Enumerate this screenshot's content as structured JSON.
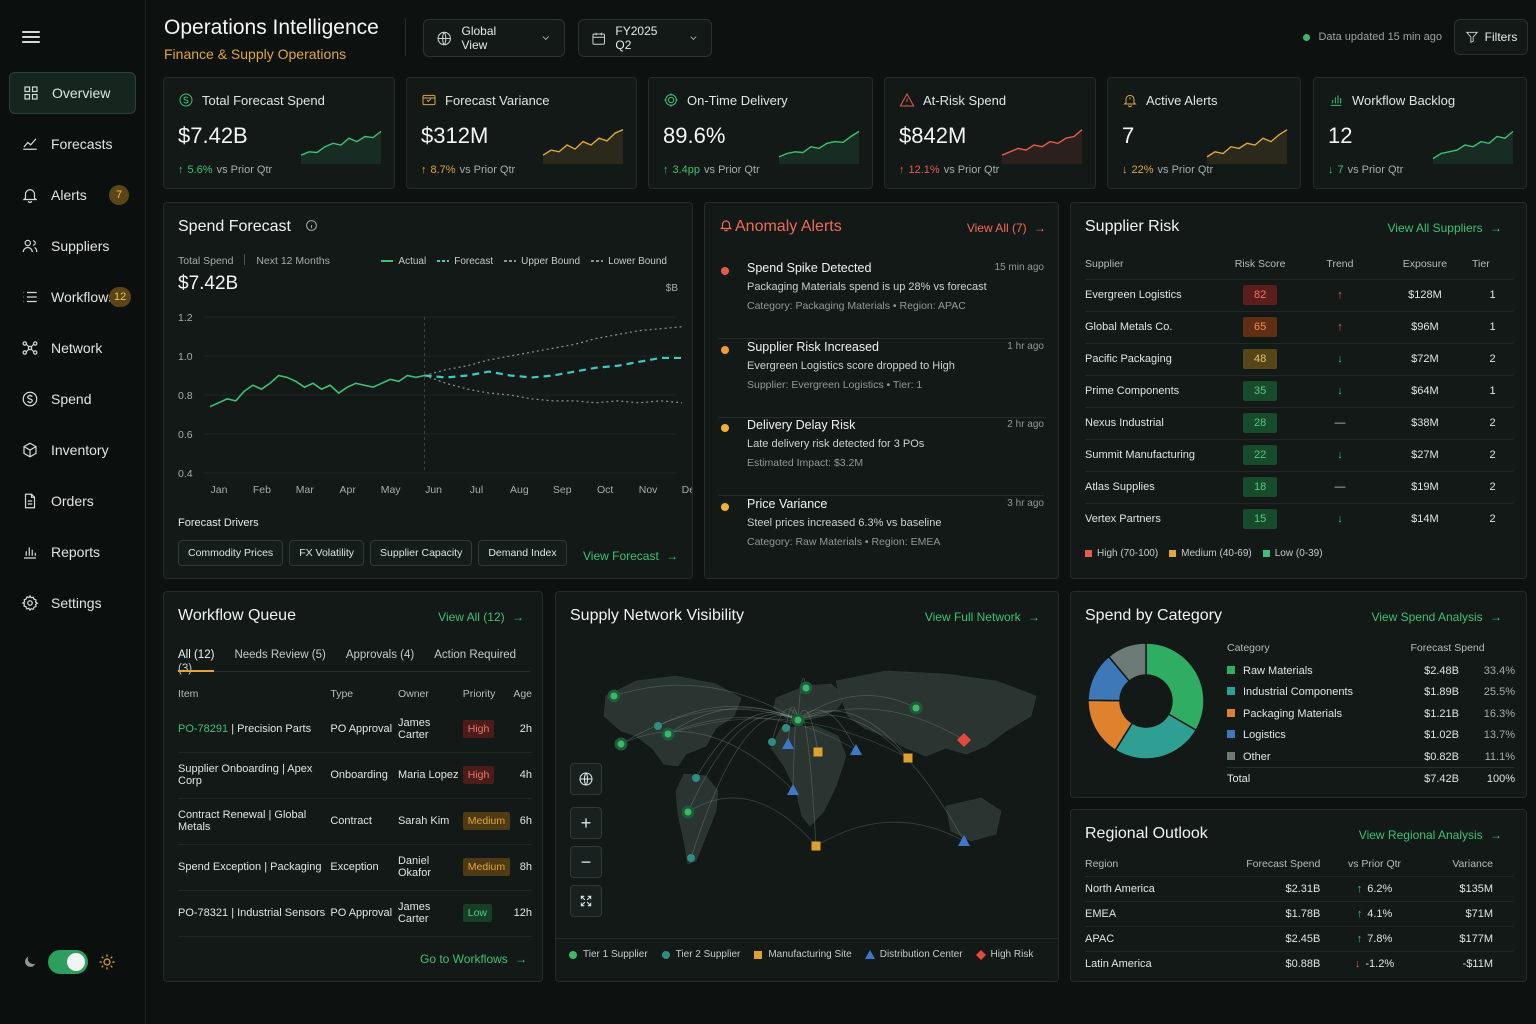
{
  "app": {
    "title": "Operations Intelligence",
    "subtitle": "Finance & Supply Operations",
    "scope": "Global View",
    "period": "FY2025 Q2",
    "updated": "Data updated 15 min ago",
    "filters": "Filters"
  },
  "nav": [
    {
      "label": "Overview",
      "icon": "grid-icon"
    },
    {
      "label": "Forecasts",
      "icon": "trend-icon"
    },
    {
      "label": "Alerts",
      "icon": "bell-icon",
      "badge": "7"
    },
    {
      "label": "Suppliers",
      "icon": "users-icon"
    },
    {
      "label": "Workflows",
      "icon": "list-icon",
      "badge": "12"
    },
    {
      "label": "Network",
      "icon": "network-icon"
    },
    {
      "label": "Spend",
      "icon": "dollar-icon"
    },
    {
      "label": "Inventory",
      "icon": "cube-icon"
    },
    {
      "label": "Orders",
      "icon": "document-icon"
    },
    {
      "label": "Reports",
      "icon": "bar-chart-icon"
    },
    {
      "label": "Settings",
      "icon": "gear-icon"
    }
  ],
  "kpis": [
    {
      "title": "Total Forecast Spend",
      "value": "$7.42B",
      "delta": "5.6%",
      "delta_label": "vs Prior Qtr",
      "dir": "up",
      "color": "#3fc074",
      "icon": "coin-icon",
      "spark": [
        0.2,
        0.3,
        0.28,
        0.45,
        0.55,
        0.5,
        0.7,
        0.6,
        0.75,
        0.72,
        0.9
      ]
    },
    {
      "title": "Forecast Variance",
      "value": "$312M",
      "delta": "8.7%",
      "delta_label": "vs Prior Qtr",
      "dir": "up",
      "color": "#e0a63c",
      "icon": "variance-icon",
      "spark": [
        0.2,
        0.35,
        0.3,
        0.5,
        0.38,
        0.6,
        0.5,
        0.7,
        0.62,
        0.85,
        0.95
      ]
    },
    {
      "title": "On-Time Delivery",
      "value": "89.6%",
      "delta": "3.4pp",
      "delta_label": "vs Prior Qtr",
      "dir": "up",
      "color": "#3fc074",
      "icon": "target-icon",
      "spark": [
        0.15,
        0.25,
        0.3,
        0.28,
        0.45,
        0.4,
        0.55,
        0.6,
        0.58,
        0.75,
        0.9
      ]
    },
    {
      "title": "At-Risk Spend",
      "value": "$842M",
      "delta": "12.1%",
      "delta_label": "vs Prior Qtr",
      "dir": "up",
      "color": "#e55b4d",
      "icon": "warning-icon",
      "spark": [
        0.2,
        0.3,
        0.4,
        0.35,
        0.5,
        0.45,
        0.6,
        0.55,
        0.7,
        0.75,
        0.95
      ]
    },
    {
      "title": "Active Alerts",
      "value": "7",
      "delta": "22%",
      "delta_label": "vs Prior Qtr",
      "dir": "down",
      "color": "#e0a63c",
      "icon": "bell-alert-icon",
      "spark": [
        0.15,
        0.3,
        0.25,
        0.45,
        0.4,
        0.55,
        0.5,
        0.7,
        0.6,
        0.8,
        0.95
      ]
    },
    {
      "title": "Workflow Backlog",
      "value": "12",
      "delta": "7",
      "delta_label": "vs Prior Qtr",
      "dir": "down",
      "color": "#3fc074",
      "icon": "bars-icon",
      "spark": [
        0.1,
        0.25,
        0.3,
        0.35,
        0.5,
        0.45,
        0.6,
        0.55,
        0.75,
        0.7,
        0.9
      ]
    }
  ],
  "spend_forecast": {
    "title": "Spend Forecast",
    "total_label": "Total Spend",
    "period_label": "Next 12 Months",
    "total": "$7.42B",
    "unit": "$B",
    "drivers_title": "Forecast Drivers",
    "drivers": [
      "Commodity Prices",
      "FX Volatility",
      "Supplier Capacity",
      "Demand Index"
    ],
    "link": "View Forecast"
  },
  "chart_data": {
    "type": "line",
    "x": [
      "Jan",
      "Feb",
      "Mar",
      "Apr",
      "May",
      "Jun",
      "Jul",
      "Aug",
      "Sep",
      "Oct",
      "Nov",
      "Dec"
    ],
    "ylim": [
      0.4,
      1.2
    ],
    "yticks": [
      "0.4",
      "0.6",
      "0.8",
      "1.0",
      "1.2"
    ],
    "series": [
      {
        "name": "Actual",
        "color": "#3fc074",
        "x": [
          0,
          0.2,
          0.4,
          0.6,
          0.8,
          1,
          1.2,
          1.4,
          1.6,
          1.8,
          2,
          2.2,
          2.4,
          2.6,
          2.8,
          3,
          3.2,
          3.4,
          3.6,
          3.8,
          4,
          4.2,
          4.4,
          4.6,
          4.8,
          5
        ],
        "values": [
          0.74,
          0.76,
          0.78,
          0.77,
          0.82,
          0.85,
          0.83,
          0.86,
          0.9,
          0.89,
          0.87,
          0.84,
          0.86,
          0.83,
          0.85,
          0.81,
          0.84,
          0.86,
          0.85,
          0.84,
          0.86,
          0.88,
          0.87,
          0.9,
          0.89,
          0.9
        ]
      },
      {
        "name": "Forecast",
        "color": "#3ec9c2",
        "x": [
          5,
          5.5,
          6,
          6.5,
          7,
          7.5,
          8,
          8.5,
          9,
          9.5,
          10,
          10.5,
          11
        ],
        "values": [
          0.9,
          0.89,
          0.9,
          0.92,
          0.9,
          0.89,
          0.9,
          0.92,
          0.94,
          0.95,
          0.97,
          0.99,
          0.99
        ]
      },
      {
        "name": "Upper Bound",
        "color": "#8a9590",
        "x": [
          5,
          5.5,
          6,
          6.5,
          7,
          7.5,
          8,
          8.5,
          9,
          9.5,
          10,
          10.5,
          11
        ],
        "values": [
          0.9,
          0.93,
          0.95,
          0.98,
          1.0,
          1.02,
          1.04,
          1.06,
          1.09,
          1.11,
          1.13,
          1.14,
          1.15
        ]
      },
      {
        "name": "Lower Bound",
        "color": "#8a9590",
        "x": [
          5,
          5.5,
          6,
          6.5,
          7,
          7.5,
          8,
          8.5,
          9,
          9.5,
          10,
          10.5,
          11
        ],
        "values": [
          0.9,
          0.86,
          0.83,
          0.81,
          0.8,
          0.78,
          0.77,
          0.77,
          0.76,
          0.77,
          0.76,
          0.77,
          0.76
        ]
      }
    ]
  },
  "anomaly": {
    "title": "Anomaly Alerts",
    "link": "View All (7)",
    "items": [
      {
        "title": "Spend Spike Detected",
        "line1": "Packaging Materials spend is up 28% vs forecast",
        "line2": "Category: Packaging Materials  •  Region: APAC",
        "time": "15 min ago",
        "color": "#e55b4d"
      },
      {
        "title": "Supplier Risk Increased",
        "line1": "Evergreen Logistics score dropped to High",
        "line2": "Supplier: Evergreen Logistics  •  Tier: 1",
        "time": "1 hr ago",
        "color": "#f0a030"
      },
      {
        "title": "Delivery Delay Risk",
        "line1": "Late delivery risk detected for 3 POs",
        "line2": "Estimated Impact: $3.2M",
        "time": "2 hr ago",
        "color": "#f0b030"
      },
      {
        "title": "Price Variance",
        "line1": "Steel prices increased 6.3% vs baseline",
        "line2": "Category: Raw Materials  •  Region: EMEA",
        "time": "3 hr ago",
        "color": "#f0b030"
      }
    ]
  },
  "supplier_risk": {
    "title": "Supplier Risk",
    "link": "View All Suppliers",
    "headers": [
      "Supplier",
      "Risk Score",
      "Trend",
      "Exposure",
      "Tier"
    ],
    "rows": [
      {
        "name": "Evergreen Logistics",
        "score": "82",
        "level": "high",
        "trend": "up",
        "exposure": "$128M",
        "tier": "1"
      },
      {
        "name": "Global Metals Co.",
        "score": "65",
        "level": "med-high",
        "trend": "up",
        "exposure": "$96M",
        "tier": "1"
      },
      {
        "name": "Pacific Packaging",
        "score": "48",
        "level": "med",
        "trend": "down",
        "exposure": "$72M",
        "tier": "2"
      },
      {
        "name": "Prime Components",
        "score": "35",
        "level": "low",
        "trend": "down",
        "exposure": "$64M",
        "tier": "1"
      },
      {
        "name": "Nexus Industrial",
        "score": "28",
        "level": "low",
        "trend": "flat",
        "exposure": "$38M",
        "tier": "2"
      },
      {
        "name": "Summit Manufacturing",
        "score": "22",
        "level": "low",
        "trend": "down",
        "exposure": "$27M",
        "tier": "2"
      },
      {
        "name": "Atlas Supplies",
        "score": "18",
        "level": "low",
        "trend": "flat",
        "exposure": "$19M",
        "tier": "2"
      },
      {
        "name": "Vertex Partners",
        "score": "15",
        "level": "low",
        "trend": "down",
        "exposure": "$14M",
        "tier": "2"
      }
    ],
    "legend": [
      "High (70-100)",
      "Medium (40-69)",
      "Low (0-39)"
    ]
  },
  "workflow": {
    "title": "Workflow Queue",
    "link": "View All (12)",
    "tabs": [
      "All (12)",
      "Needs Review (5)",
      "Approvals (4)",
      "Action Required (3)"
    ],
    "headers": [
      "Item",
      "Type",
      "Owner",
      "Priority",
      "Age"
    ],
    "rows": [
      {
        "id": "PO-78291",
        "item": " | Precision Parts",
        "type": "PO Approval",
        "owner": "James Carter",
        "priority": "High",
        "age": "2h"
      },
      {
        "id": "",
        "item": "Supplier Onboarding | Apex Corp",
        "type": "Onboarding",
        "owner": "Maria Lopez",
        "priority": "High",
        "age": "4h"
      },
      {
        "id": "",
        "item": "Contract Renewal | Global Metals",
        "type": "Contract",
        "owner": "Sarah Kim",
        "priority": "Medium",
        "age": "6h"
      },
      {
        "id": "",
        "item": "Spend Exception | Packaging",
        "type": "Exception",
        "owner": "Daniel Okafor",
        "priority": "Medium",
        "age": "8h"
      },
      {
        "id": "",
        "item": "PO-78321 | Industrial Sensors",
        "type": "PO Approval",
        "owner": "James Carter",
        "priority": "Low",
        "age": "12h"
      }
    ],
    "footer": "Go to Workflows"
  },
  "network": {
    "title": "Supply Network Visibility",
    "link": "View Full Network",
    "legend": [
      "Tier 1 Supplier",
      "Tier 2 Supplier",
      "Manufacturing Site",
      "Distribution Center",
      "High Risk"
    ]
  },
  "category": {
    "title": "Spend by Category",
    "link": "View Spend Analysis",
    "headers": [
      "Category",
      "Forecast Spend"
    ],
    "rows": [
      {
        "name": "Raw Materials",
        "spend": "$2.48B",
        "pct": "33.4%",
        "value": 33.4,
        "color": "#2fae63"
      },
      {
        "name": "Industrial Components",
        "spend": "$1.89B",
        "pct": "25.5%",
        "value": 25.5,
        "color": "#2e9f92"
      },
      {
        "name": "Packaging Materials",
        "spend": "$1.21B",
        "pct": "16.3%",
        "value": 16.3,
        "color": "#e0812e"
      },
      {
        "name": "Logistics",
        "spend": "$1.02B",
        "pct": "13.7%",
        "value": 13.7,
        "color": "#3f78b8"
      },
      {
        "name": "Other",
        "spend": "$0.82B",
        "pct": "11.1%",
        "value": 11.1,
        "color": "#6c7a78"
      }
    ],
    "total_label": "Total",
    "total": "$7.42B",
    "total_pct": "100%"
  },
  "regional": {
    "title": "Regional Outlook",
    "link": "View Regional Analysis",
    "headers": [
      "Region",
      "Forecast Spend",
      "vs Prior Qtr",
      "Variance"
    ],
    "rows": [
      {
        "region": "North America",
        "spend": "$2.31B",
        "delta": "6.2%",
        "dir": "up",
        "variance": "$135M"
      },
      {
        "region": "EMEA",
        "spend": "$1.78B",
        "delta": "4.1%",
        "dir": "up",
        "variance": "$71M"
      },
      {
        "region": "APAC",
        "spend": "$2.45B",
        "delta": "7.8%",
        "dir": "up",
        "variance": "$177M"
      },
      {
        "region": "Latin America",
        "spend": "$0.88B",
        "delta": "-1.2%",
        "dir": "down",
        "variance": "-$11M"
      }
    ]
  }
}
